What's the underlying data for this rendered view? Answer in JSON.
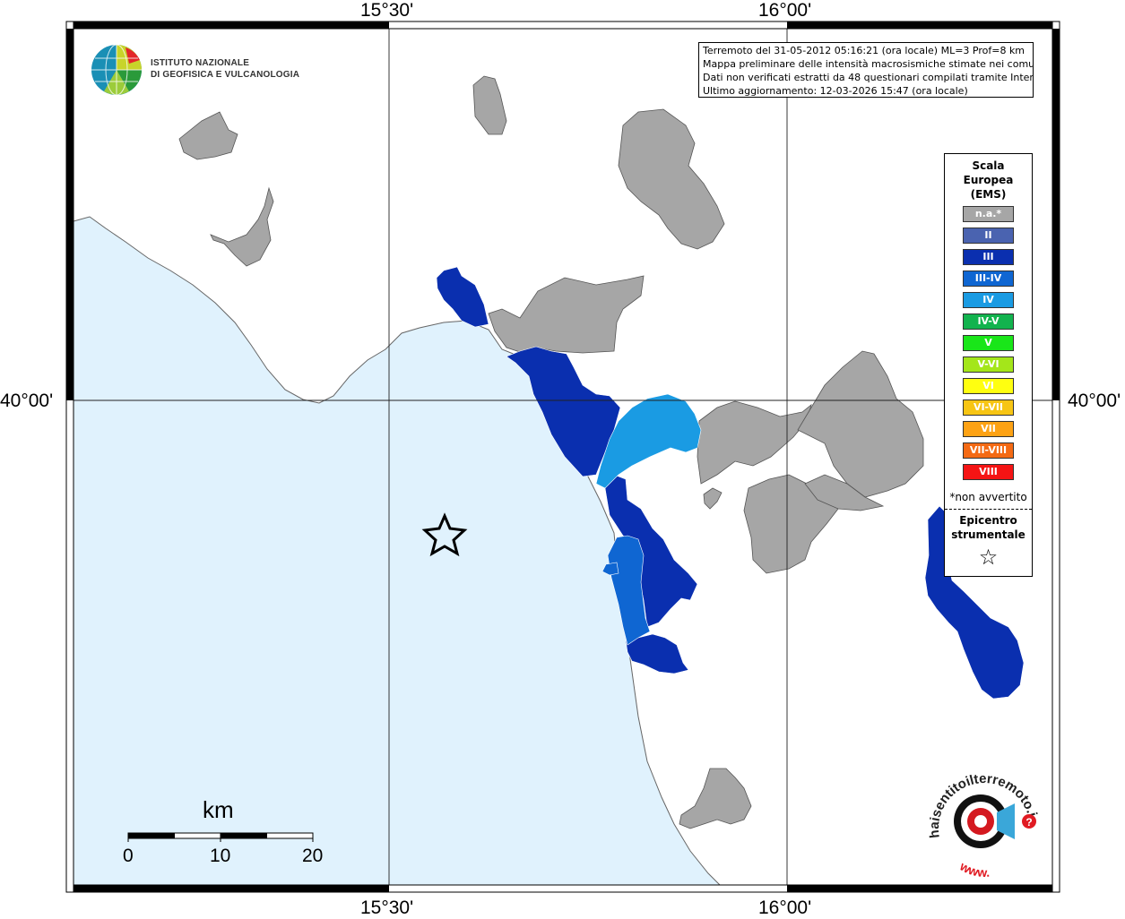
{
  "info": {
    "line1": "Terremoto del 31-05-2012 05:16:21 (ora locale) ML=3 Prof=8 km",
    "line2": "Mappa preliminare delle intensità macrosismiche stimate nei comuni",
    "line3": "Dati non verificati estratti da 48 questionari compilati tramite Internet.",
    "line4": "Ultimo aggiornamento: 12-03-2026 15:47 (ora locale)"
  },
  "coords": {
    "lon1": "15°30'",
    "lon2": "16°00'",
    "lat1": "40°00'"
  },
  "logo": {
    "line1": "ISTITUTO NAZIONALE",
    "line2": "DI GEOFISICA E VULCANOLOGIA"
  },
  "legend": {
    "title1": "Scala",
    "title2": "Europea",
    "title3": "(EMS)",
    "items": [
      {
        "label": "n.a.*",
        "color": "#a6a6a6"
      },
      {
        "label": "II",
        "color": "#4a63b0"
      },
      {
        "label": "III",
        "color": "#0a2faf"
      },
      {
        "label": "III-IV",
        "color": "#0f66d2"
      },
      {
        "label": "IV",
        "color": "#1a9be3"
      },
      {
        "label": "IV-V",
        "color": "#12b34e"
      },
      {
        "label": "V",
        "color": "#19e619"
      },
      {
        "label": "V-VI",
        "color": "#a4e61a"
      },
      {
        "label": "VI",
        "color": "#ffff10"
      },
      {
        "label": "VI-VII",
        "color": "#f7c514"
      },
      {
        "label": "VII",
        "color": "#fda214"
      },
      {
        "label": "VII-VIII",
        "color": "#f46a14"
      },
      {
        "label": "VIII",
        "color": "#f51414"
      }
    ],
    "note": "*non avvertito",
    "epi1": "Epicentro",
    "epi2": "strumentale",
    "star": "☆"
  },
  "scale": {
    "title": "km",
    "t0": "0",
    "t10": "10",
    "t20": "20"
  },
  "colors": {
    "sea": "#e0f2fd",
    "na": "#a6a6a6",
    "III": "#0a2faf",
    "III-IV": "#0f66d2",
    "IV": "#1a9be3"
  },
  "hai_logo": {
    "text1": "haisentitoilterremoto.it",
    "text2": "www."
  }
}
